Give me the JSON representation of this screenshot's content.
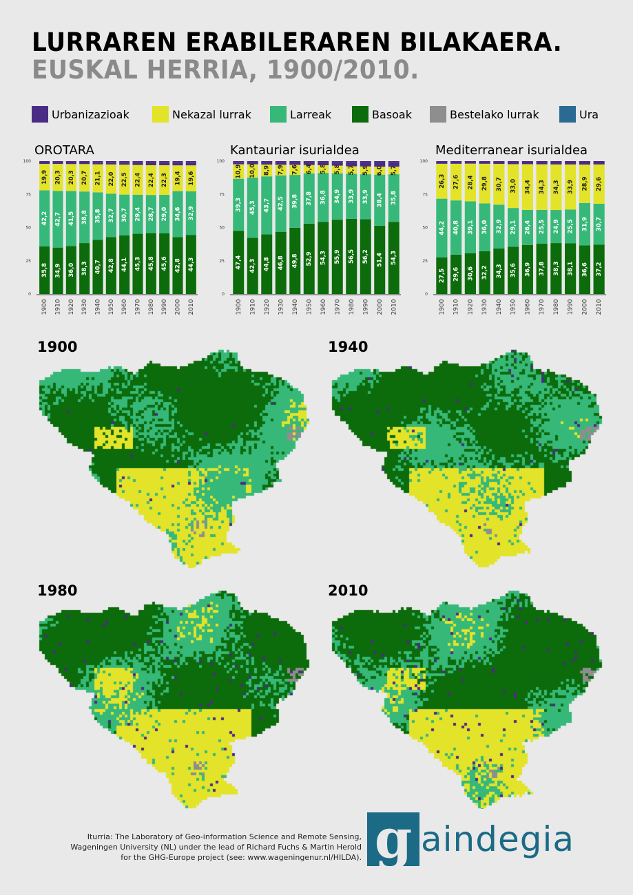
{
  "header": {
    "title": "LURRAREN ERABILERAREN BILAKAERA.",
    "subtitle": "EUSKAL HERRIA, 1900/2010."
  },
  "legend": [
    {
      "label": "Urbanizazioak",
      "color": "#4b2c85"
    },
    {
      "label": "Nekazal lurrak",
      "color": "#e3e32a"
    },
    {
      "label": "Larreak",
      "color": "#36b879"
    },
    {
      "label": "Basoak",
      "color": "#0c6b0a"
    },
    {
      "label": "Bestelako lurrak",
      "color": "#8e8e8e"
    },
    {
      "label": "Ura",
      "color": "#2c6b91"
    }
  ],
  "chart_data": [
    {
      "type": "bar",
      "title": "OROTARA",
      "categories": [
        "1900",
        "1910",
        "1920",
        "1930",
        "1940",
        "1950",
        "1960",
        "1970",
        "1980",
        "1990",
        "2000",
        "2010"
      ],
      "yticks": [
        "0",
        "25",
        "50",
        "75",
        "100"
      ],
      "ylim": [
        0,
        100
      ],
      "stacked": true,
      "series": [
        {
          "name": "Basoak",
          "values": [
            35.8,
            34.9,
            36.0,
            38.3,
            40.7,
            42.8,
            44.1,
            45.3,
            45.8,
            45.6,
            42.8,
            44.3
          ],
          "labels": [
            "35,8",
            "34,9",
            "36,0",
            "38,3",
            "40,7",
            "42,8",
            "44,1",
            "45,3",
            "45,8",
            "45,6",
            "42,8",
            "44,3"
          ]
        },
        {
          "name": "Larreak",
          "values": [
            42.2,
            42.7,
            41.5,
            38.8,
            35.8,
            32.7,
            30.7,
            29.4,
            28.7,
            29.0,
            34.6,
            32.9
          ],
          "labels": [
            "42,2",
            "42,7",
            "41,5",
            "38,8",
            "35,8",
            "32,7",
            "30,7",
            "29,4",
            "28,7",
            "29,0",
            "34,6",
            "32,9"
          ]
        },
        {
          "name": "Nekazal lurrak",
          "values": [
            19.9,
            20.3,
            20.3,
            20.7,
            21.1,
            22.0,
            22.5,
            22.4,
            22.4,
            22.3,
            19.4,
            19.6
          ],
          "labels": [
            "19,9",
            "20,3",
            "20,3",
            "20,7",
            "21,1",
            "22,0",
            "22,5",
            "22,4",
            "22,4",
            "22,3",
            "19,4",
            "19,6"
          ]
        },
        {
          "name": "Urbanizazioak",
          "values": [
            0.8,
            0.8,
            0.9,
            0.9,
            1.0,
            1.1,
            1.3,
            1.5,
            1.6,
            1.7,
            1.8,
            2.0
          ],
          "labels": []
        }
      ]
    },
    {
      "type": "bar",
      "title": "Kantauriar isurialdea",
      "categories": [
        "1900",
        "1910",
        "1920",
        "1930",
        "1940",
        "1950",
        "1960",
        "1970",
        "1980",
        "1990",
        "2000",
        "2010"
      ],
      "yticks": [
        "0",
        "25",
        "50",
        "75",
        "100"
      ],
      "ylim": [
        0,
        100
      ],
      "stacked": true,
      "series": [
        {
          "name": "Basoak",
          "values": [
            47.4,
            42.3,
            44.8,
            46.8,
            49.8,
            52.9,
            54.3,
            55.9,
            56.5,
            56.2,
            51.4,
            54.3
          ],
          "labels": [
            "47,4",
            "42,3",
            "44,8",
            "46,8",
            "49,8",
            "52,9",
            "54,3",
            "55,9",
            "56,5",
            "56,2",
            "51,4",
            "54,3"
          ]
        },
        {
          "name": "Larreak",
          "values": [
            39.3,
            45.3,
            43.7,
            42.5,
            39.8,
            37.8,
            36.8,
            34.9,
            33.9,
            33.9,
            38.4,
            35.8
          ],
          "labels": [
            "39,3",
            "45,3",
            "43,7",
            "42,5",
            "39,8",
            "37,8",
            "36,8",
            "34,9",
            "33,9",
            "33,9",
            "38,4",
            "35,8"
          ]
        },
        {
          "name": "Nekazal lurrak",
          "values": [
            10.9,
            10.0,
            8.9,
            7.9,
            7.6,
            6.4,
            5.8,
            5.8,
            5.7,
            5.9,
            6.0,
            5.7
          ],
          "labels": [
            "10,9",
            "10,0",
            "8,9",
            "7,9",
            "7,6",
            "6,4",
            "5,8",
            "5,8",
            "5,7",
            "5,9",
            "6,0",
            "5,7"
          ]
        },
        {
          "name": "Urbanizazioak",
          "values": [
            1.2,
            1.4,
            1.6,
            1.8,
            2.0,
            2.1,
            2.3,
            2.5,
            2.8,
            3.0,
            3.2,
            3.3
          ],
          "labels": []
        }
      ]
    },
    {
      "type": "bar",
      "title": "Mediterranear isurialdea",
      "categories": [
        "1900",
        "1910",
        "1920",
        "1930",
        "1940",
        "1950",
        "1960",
        "1970",
        "1980",
        "1990",
        "2000",
        "2010"
      ],
      "yticks": [
        "0",
        "25",
        "50",
        "75",
        "100"
      ],
      "ylim": [
        0,
        100
      ],
      "stacked": true,
      "series": [
        {
          "name": "Basoak",
          "values": [
            27.5,
            29.6,
            30.6,
            32.2,
            34.3,
            35.6,
            36.9,
            37.8,
            38.3,
            38.1,
            36.6,
            37.2
          ],
          "labels": [
            "27,5",
            "29,6",
            "30,6",
            "32,2",
            "34,3",
            "35,6",
            "36,9",
            "37,8",
            "38,3",
            "38,1",
            "36,6",
            "37,2"
          ]
        },
        {
          "name": "Larreak",
          "values": [
            44.2,
            40.8,
            39.1,
            36.0,
            32.9,
            29.1,
            26.4,
            25.5,
            24.9,
            25.5,
            31.9,
            30.7
          ],
          "labels": [
            "44,2",
            "40,8",
            "39,1",
            "36,0",
            "32,9",
            "29,1",
            "26,4",
            "25,5",
            "24,9",
            "25,5",
            "31,9",
            "30,7"
          ]
        },
        {
          "name": "Nekazal lurrak",
          "values": [
            26.3,
            27.6,
            28.4,
            29.8,
            30.7,
            33.0,
            34.4,
            34.3,
            34.3,
            33.9,
            28.9,
            29.6
          ],
          "labels": [
            "26,3",
            "27,6",
            "28,4",
            "29,8",
            "30,7",
            "33,0",
            "34,4",
            "34,3",
            "34,3",
            "33,9",
            "28,9",
            "29,6"
          ]
        }
      ]
    }
  ],
  "maps": [
    {
      "year": "1900"
    },
    {
      "year": "1940"
    },
    {
      "year": "1980"
    },
    {
      "year": "2010"
    }
  ],
  "footer": {
    "source_line1": "Iturria: The Laboratory of Geo-information Science and Remote Sensing,",
    "source_line2": "Wageningen University (NL) under the lead of Richard Fuchs & Martin Herold",
    "source_line3": "for the GHG-Europe project (see: www.wageningenur.nl/HILDA).",
    "logo_letter": "g",
    "logo_text": "aindegia"
  }
}
